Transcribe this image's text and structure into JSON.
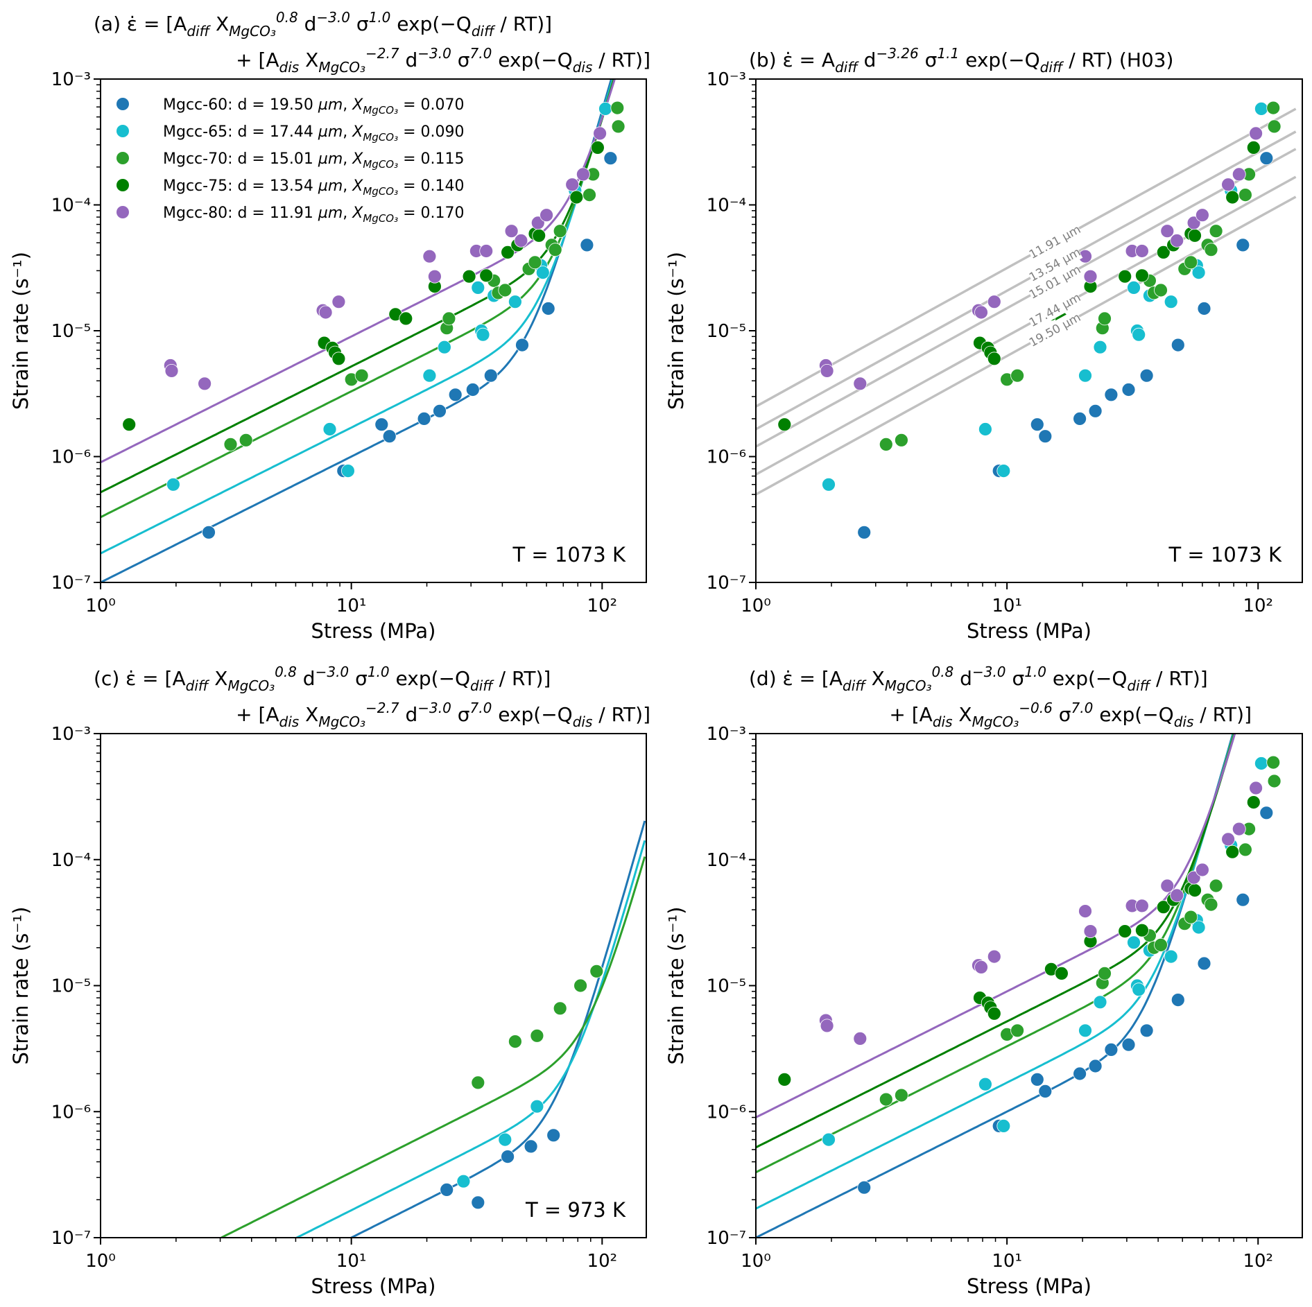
{
  "figure": {
    "xlabel": "Stress (MPa)",
    "ylabel": "Strain rate (s⁻¹)",
    "xlim": [
      1,
      150
    ],
    "ylim": [
      1e-07,
      0.001
    ],
    "x_ticks": [
      "10⁰",
      "10¹",
      "10²"
    ],
    "y_ticks": [
      "10⁻⁷",
      "10⁻⁶",
      "10⁻⁵",
      "10⁻⁴",
      "10⁻³"
    ]
  },
  "legend": [
    {
      "sample": "Mgcc-60",
      "d_um": "19.50",
      "X": "0.070",
      "color": "#1f77b4"
    },
    {
      "sample": "Mgcc-65",
      "d_um": "17.44",
      "X": "0.090",
      "color": "#17becf"
    },
    {
      "sample": "Mgcc-70",
      "d_um": "15.01",
      "X": "0.115",
      "color": "#2ca02c"
    },
    {
      "sample": "Mgcc-75",
      "d_um": "13.54",
      "X": "0.140",
      "color": "#008000"
    },
    {
      "sample": "Mgcc-80",
      "d_um": "11.91",
      "X": "0.170",
      "color": "#9467bd"
    }
  ],
  "chart_data": [
    {
      "panel": "a",
      "type": "scatter",
      "title_line1": "(a) ε̇ = [A_diff X_MgCO3^0.8 d^-3.0 σ^1.0 exp(−Q_diff / RT)]",
      "title_line2": "+ [A_dis X_MgCO3^-2.7 d^-3.0 σ^7.0 exp(−Q_dis / RT)]",
      "annotation": "T = 1073 K",
      "xscale": "log",
      "yscale": "log",
      "xlim": [
        1,
        150
      ],
      "ylim": [
        1e-07,
        0.001
      ],
      "legend_position": "upper-left",
      "model": {
        "type": "composite",
        "diff_coef": [
          1e-07,
          1.7e-07,
          3.3e-07,
          5.2e-07,
          9e-07
        ],
        "dis_coef": [
          5.5e-18,
          5e-18,
          4.6e-18,
          4.3e-18,
          4e-18
        ],
        "n_diff": 1.0,
        "n_dis": 7.0
      },
      "series": "T1073"
    },
    {
      "panel": "b",
      "type": "scatter",
      "title_line1": "(b) ε̇ = A_diff d^-3.26 σ^1.1 exp(−Q_diff / RT) (H03)",
      "title_line2": "",
      "annotation": "T = 1073 K",
      "xscale": "log",
      "yscale": "log",
      "xlim": [
        1,
        150
      ],
      "ylim": [
        1e-07,
        0.001
      ],
      "reference_lines": [
        {
          "label": "11.91 µm",
          "intercept": 2.5e-06
        },
        {
          "label": "13.54 µm",
          "intercept": 1.65e-06
        },
        {
          "label": "15.01 µm",
          "intercept": 1.2e-06
        },
        {
          "label": "17.44 µm",
          "intercept": 7.2e-07
        },
        {
          "label": "19.50 µm",
          "intercept": 5e-07
        }
      ],
      "reference_slope": 1.1,
      "series": "T1073"
    },
    {
      "panel": "c",
      "type": "scatter",
      "title_line1": "(c) ε̇ = [A_diff X_MgCO3^0.8 d^-3.0 σ^1.0 exp(−Q_diff / RT)]",
      "title_line2": "+ [A_dis X_MgCO3^-2.7 d^-3.0 σ^7.0 exp(−Q_dis / RT)]",
      "annotation": "T = 973 K",
      "xscale": "log",
      "yscale": "log",
      "xlim": [
        1,
        150
      ],
      "ylim": [
        1e-07,
        0.001
      ],
      "model": {
        "type": "composite",
        "groups": [
          0,
          1,
          2
        ],
        "diff_coef": [
          1e-08,
          1.65e-08,
          3.3e-08
        ],
        "dis_coef": [
          1.3e-19,
          9e-20,
          6.5e-20
        ],
        "n_diff": 1.0,
        "n_dis": 7.0
      },
      "series": [
        {
          "name": "Mgcc-60",
          "group": 0,
          "points": [
            [
              24,
              2.4e-07
            ],
            [
              32,
              1.9e-07
            ],
            [
              42,
              4.4e-07
            ],
            [
              52,
              5.3e-07
            ],
            [
              64,
              6.5e-07
            ]
          ]
        },
        {
          "name": "Mgcc-65",
          "group": 1,
          "points": [
            [
              28,
              2.8e-07
            ],
            [
              41,
              6e-07
            ],
            [
              55,
              1.1e-06
            ]
          ]
        },
        {
          "name": "Mgcc-70",
          "group": 2,
          "points": [
            [
              32,
              1.7e-06
            ],
            [
              45,
              3.6e-06
            ],
            [
              55,
              4e-06
            ],
            [
              68,
              6.6e-06
            ],
            [
              82,
              1e-05
            ],
            [
              95,
              1.3e-05
            ]
          ]
        }
      ]
    },
    {
      "panel": "d",
      "type": "scatter",
      "title_line1": "(d) ε̇ = [A_diff X_MgCO3^0.8 d^-3.0 σ^1.0 exp(−Q_diff / RT)]",
      "title_line2": "+ [A_dis X_MgCO3^-0.6 σ^7.0 exp(−Q_dis / RT)]",
      "annotation": "",
      "xscale": "log",
      "yscale": "log",
      "xlim": [
        1,
        150
      ],
      "ylim": [
        1e-07,
        0.001
      ],
      "model": {
        "type": "composite",
        "diff_coef": [
          1e-07,
          1.7e-07,
          3.3e-07,
          5.2e-07,
          9e-07
        ],
        "dis_coef": [
          5e-17,
          4.8e-17,
          4.6e-17,
          4.3e-17,
          4.1e-17
        ],
        "n_diff": 1.0,
        "n_dis": 7.0
      },
      "series": "T1073"
    }
  ],
  "series_T1073": [
    {
      "name": "Mgcc-60",
      "group": 0,
      "points": [
        [
          2.7,
          2.5e-07
        ],
        [
          9.3,
          7.7e-07
        ],
        [
          13.2,
          1.8e-06
        ],
        [
          14.2,
          1.45e-06
        ],
        [
          19.5,
          2e-06
        ],
        [
          22.5,
          2.3e-06
        ],
        [
          26,
          3.1e-06
        ],
        [
          30.5,
          3.4e-06
        ],
        [
          36,
          4.4e-06
        ],
        [
          48,
          7.7e-06
        ],
        [
          61,
          1.5e-05
        ],
        [
          87,
          4.8e-05
        ],
        [
          108,
          0.000235
        ]
      ]
    },
    {
      "name": "Mgcc-65",
      "group": 1,
      "points": [
        [
          1.95,
          6e-07
        ],
        [
          8.2,
          1.65e-06
        ],
        [
          9.7,
          7.7e-07
        ],
        [
          20.5,
          4.4e-06
        ],
        [
          23.5,
          7.4e-06
        ],
        [
          32,
          2.2e-05
        ],
        [
          33,
          1e-05
        ],
        [
          33.5,
          9.3e-06
        ],
        [
          37,
          1.9e-05
        ],
        [
          45,
          1.7e-05
        ],
        [
          57,
          3.3e-05
        ],
        [
          58,
          2.9e-05
        ],
        [
          78,
          0.00013
        ],
        [
          103,
          0.00058
        ]
      ]
    },
    {
      "name": "Mgcc-70",
      "group": 2,
      "points": [
        [
          3.3,
          1.25e-06
        ],
        [
          3.8,
          1.35e-06
        ],
        [
          10,
          4.1e-06
        ],
        [
          11,
          4.4e-06
        ],
        [
          24,
          1.05e-05
        ],
        [
          24.5,
          1.25e-05
        ],
        [
          37,
          2.5e-05
        ],
        [
          38.5,
          2e-05
        ],
        [
          41,
          2.1e-05
        ],
        [
          51,
          3.1e-05
        ],
        [
          54,
          3.5e-05
        ],
        [
          63,
          4.8e-05
        ],
        [
          65,
          4.4e-05
        ],
        [
          68,
          6.2e-05
        ],
        [
          89,
          0.00012
        ],
        [
          92,
          0.000175
        ],
        [
          115,
          0.00059
        ],
        [
          116,
          0.00042
        ]
      ]
    },
    {
      "name": "Mgcc-75",
      "group": 3,
      "points": [
        [
          1.3,
          1.8e-06
        ],
        [
          7.8,
          8e-06
        ],
        [
          8.4,
          7.3e-06
        ],
        [
          8.6,
          6.7e-06
        ],
        [
          8.9,
          6e-06
        ],
        [
          15,
          1.35e-05
        ],
        [
          16.5,
          1.25e-05
        ],
        [
          21.5,
          2.25e-05
        ],
        [
          29.5,
          2.7e-05
        ],
        [
          34.5,
          2.75e-05
        ],
        [
          42,
          4.2e-05
        ],
        [
          46,
          4.8e-05
        ],
        [
          54,
          5.9e-05
        ],
        [
          56,
          5.7e-05
        ],
        [
          79,
          0.000115
        ],
        [
          96,
          0.000285
        ]
      ]
    },
    {
      "name": "Mgcc-80",
      "group": 4,
      "points": [
        [
          1.9,
          5.3e-06
        ],
        [
          1.92,
          4.8e-06
        ],
        [
          2.6,
          3.8e-06
        ],
        [
          7.7,
          1.45e-05
        ],
        [
          7.9,
          1.4e-05
        ],
        [
          8.9,
          1.7e-05
        ],
        [
          20.5,
          3.9e-05
        ],
        [
          21.5,
          2.7e-05
        ],
        [
          31.5,
          4.3e-05
        ],
        [
          34.5,
          4.3e-05
        ],
        [
          43.5,
          6.2e-05
        ],
        [
          47.5,
          5.2e-05
        ],
        [
          55.5,
          7.2e-05
        ],
        [
          60,
          8.3e-05
        ],
        [
          76,
          0.000145
        ],
        [
          84,
          0.000175
        ],
        [
          98,
          0.00037
        ]
      ]
    }
  ]
}
